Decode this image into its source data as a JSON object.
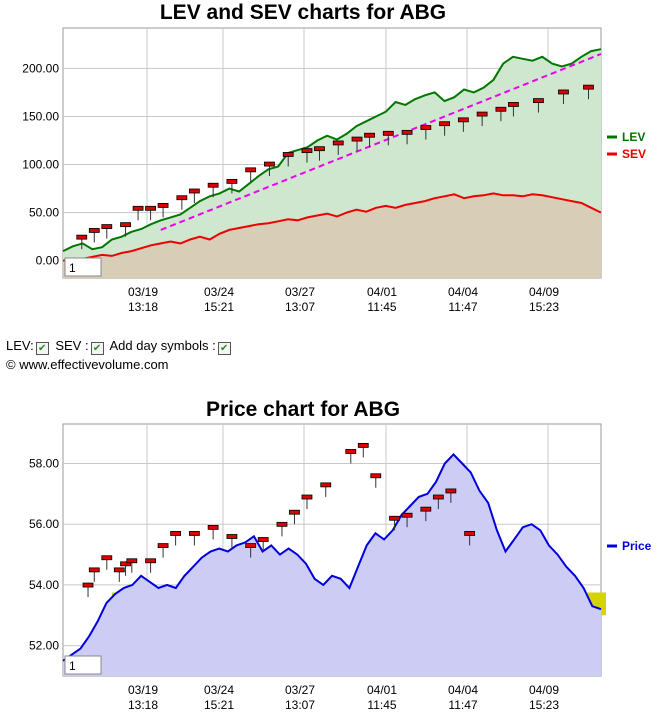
{
  "controls": {
    "lev_label": "LEV:",
    "sev_label": "SEV :",
    "day_symbols_label": "Add day symbols :",
    "checkbox_mark": "✔"
  },
  "copyright": "© www.effectivevolume.com",
  "chart_data": [
    {
      "type": "line",
      "title": "LEV and SEV charts for ABG",
      "xlabel": "",
      "ylabel": "",
      "ylim": [
        -18,
        242
      ],
      "yticks": [
        0,
        50,
        100,
        150,
        200
      ],
      "ytick_labels": [
        "0.00",
        "50.00",
        "100.00",
        "150.00",
        "200.00"
      ],
      "xticks": [
        {
          "date": "03/19",
          "time": "13:18"
        },
        {
          "date": "03/24",
          "time": "15:21"
        },
        {
          "date": "03/27",
          "time": "13:07"
        },
        {
          "date": "04/01",
          "time": "11:45"
        },
        {
          "date": "04/04",
          "time": "11:47"
        },
        {
          "date": "04/09",
          "time": "15:23"
        }
      ],
      "zoom_label": "1",
      "grid": true,
      "legend": "right",
      "series": [
        {
          "name": "LEV",
          "color": "#007700",
          "fill": "#cfe6cf",
          "values": [
            10,
            15,
            18,
            12,
            14,
            22,
            25,
            30,
            33,
            38,
            42,
            45,
            48,
            55,
            62,
            67,
            70,
            75,
            72,
            80,
            88,
            95,
            98,
            112,
            115,
            118,
            125,
            130,
            126,
            132,
            140,
            145,
            150,
            155,
            165,
            162,
            168,
            172,
            175,
            166,
            170,
            178,
            175,
            180,
            188,
            205,
            212,
            210,
            208,
            212,
            205,
            202,
            205,
            212,
            218,
            220
          ]
        },
        {
          "name": "SEV",
          "color": "#ee0000",
          "fill": "#d9c8b2",
          "values": [
            0,
            2,
            2,
            4,
            6,
            5,
            8,
            10,
            13,
            16,
            18,
            20,
            18,
            22,
            25,
            22,
            28,
            32,
            34,
            36,
            38,
            39,
            41,
            43,
            42,
            45,
            47,
            49,
            46,
            50,
            53,
            51,
            55,
            57,
            55,
            58,
            60,
            62,
            65,
            67,
            69,
            65,
            67,
            68,
            70,
            68,
            68,
            67,
            69,
            68,
            66,
            64,
            62,
            60,
            55,
            50
          ]
        }
      ],
      "trendline": {
        "color": "#ee00ee",
        "style": "dashed",
        "from": [
          10,
          32
        ],
        "to": [
          55,
          215
        ]
      },
      "day_symbols": [
        [
          3,
          12
        ],
        [
          5,
          19
        ],
        [
          7,
          23
        ],
        [
          10,
          25
        ],
        [
          12,
          42
        ],
        [
          14,
          42
        ],
        [
          16,
          45
        ],
        [
          19,
          53
        ],
        [
          21,
          60
        ],
        [
          24,
          66
        ],
        [
          27,
          70
        ],
        [
          30,
          82
        ],
        [
          33,
          88
        ],
        [
          36,
          98
        ],
        [
          39,
          102
        ],
        [
          41,
          104
        ],
        [
          44,
          110
        ],
        [
          47,
          114
        ],
        [
          49,
          118
        ],
        [
          52,
          120
        ],
        [
          55,
          121
        ],
        [
          58,
          126
        ],
        [
          61,
          130
        ],
        [
          64,
          134
        ],
        [
          67,
          140
        ],
        [
          70,
          145
        ],
        [
          72,
          150
        ],
        [
          76,
          154
        ],
        [
          80,
          163
        ],
        [
          84,
          168
        ]
      ]
    },
    {
      "type": "area",
      "title": "Price chart for ABG",
      "xlabel": "",
      "ylabel": "",
      "ylim": [
        51.0,
        59.3
      ],
      "yticks": [
        52,
        54,
        56,
        58
      ],
      "ytick_labels": [
        "52.00",
        "54.00",
        "56.00",
        "58.00"
      ],
      "xticks": [
        {
          "date": "03/19",
          "time": "13:18"
        },
        {
          "date": "03/24",
          "time": "15:21"
        },
        {
          "date": "03/27",
          "time": "13:07"
        },
        {
          "date": "04/01",
          "time": "11:45"
        },
        {
          "date": "04/04",
          "time": "11:47"
        },
        {
          "date": "04/09",
          "time": "15:23"
        }
      ],
      "zoom_label": "1",
      "grid": true,
      "legend": "right",
      "series": [
        {
          "name": "Price",
          "color": "#0000dd",
          "fill": "#ccccf4",
          "values": [
            51.5,
            51.7,
            51.9,
            52.3,
            52.8,
            53.4,
            53.7,
            53.9,
            54.0,
            54.3,
            54.1,
            53.9,
            54.0,
            53.9,
            54.3,
            54.6,
            54.9,
            55.1,
            55.2,
            55.1,
            55.3,
            55.4,
            55.6,
            55.1,
            55.3,
            55.0,
            55.2,
            55.0,
            54.7,
            54.2,
            54.0,
            54.3,
            54.2,
            53.9,
            54.6,
            55.3,
            55.7,
            55.5,
            55.8,
            56.3,
            56.6,
            56.9,
            57.0,
            57.4,
            58.0,
            58.3,
            58.0,
            57.7,
            57.1,
            56.7,
            55.8,
            55.1,
            55.5,
            55.9,
            56.0,
            55.8,
            55.3,
            55.0,
            54.6,
            54.3,
            53.9,
            53.3,
            53.2
          ]
        },
        {
          "name": "",
          "color": "#000000",
          "values": []
        }
      ],
      "support_band": {
        "color": "#d4d400",
        "range": [
          53.0,
          53.75
        ]
      },
      "day_symbols": [
        [
          4,
          53.6
        ],
        [
          5,
          54.1
        ],
        [
          7,
          54.5
        ],
        [
          9,
          54.1
        ],
        [
          10,
          54.3
        ],
        [
          11,
          54.4
        ],
        [
          14,
          54.4
        ],
        [
          16,
          54.9
        ],
        [
          18,
          55.3
        ],
        [
          21,
          55.3
        ],
        [
          24,
          55.5
        ],
        [
          27,
          55.2
        ],
        [
          30,
          54.9
        ],
        [
          32,
          55.1
        ],
        [
          35,
          55.6
        ],
        [
          37,
          56.0
        ],
        [
          39,
          56.5
        ],
        [
          42,
          56.9
        ],
        [
          46,
          58.0
        ],
        [
          48,
          58.2
        ],
        [
          50,
          57.2
        ],
        [
          53,
          55.8
        ],
        [
          55,
          55.9
        ],
        [
          58,
          56.1
        ],
        [
          60,
          56.5
        ],
        [
          62,
          56.7
        ],
        [
          65,
          55.3
        ]
      ]
    }
  ]
}
